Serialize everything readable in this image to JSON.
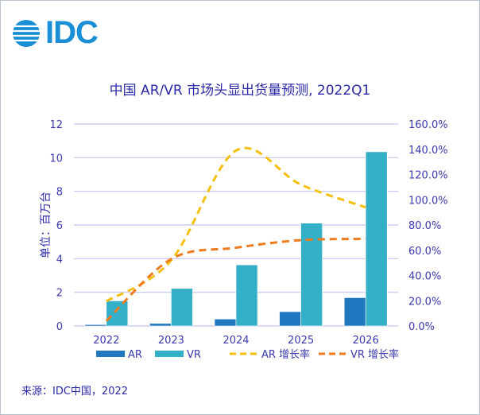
{
  "logo": {
    "text": "IDC"
  },
  "chart_data": {
    "type": "bar",
    "title": "中国 AR/VR 市场头显出货量预测, 2022Q1",
    "ylabel": "单位：百万台",
    "categories": [
      "2022",
      "2023",
      "2024",
      "2025",
      "2026"
    ],
    "ylim": [
      0,
      12
    ],
    "yticks": [
      "0",
      "2",
      "4",
      "6",
      "8",
      "10",
      "12"
    ],
    "y2lim": [
      0,
      160
    ],
    "y2ticks": [
      "0.0%",
      "20.0%",
      "40.0%",
      "60.0%",
      "80.0%",
      "100.0%",
      "120.0%",
      "140.0%",
      "160.0%"
    ],
    "grid": true,
    "legend_position": "bottom",
    "series": [
      {
        "name": "AR",
        "kind": "bar",
        "axis": "left",
        "color": "#1f77bf",
        "values": [
          0.08,
          0.15,
          0.41,
          0.85,
          1.68
        ]
      },
      {
        "name": "VR",
        "kind": "bar",
        "axis": "left",
        "color": "#33afc8",
        "values": [
          1.49,
          2.23,
          3.63,
          6.11,
          10.35
        ]
      },
      {
        "name": "AR 增长率",
        "kind": "line",
        "axis": "right",
        "color": "#f5bf0f",
        "dashed": true,
        "values": [
          19.5,
          52,
          139,
          112,
          94
        ]
      },
      {
        "name": "VR 增长率",
        "kind": "line",
        "axis": "right",
        "color": "#f07a1e",
        "dashed": true,
        "values": [
          4,
          53,
          62,
          68,
          69
        ]
      }
    ]
  },
  "source": "来源：IDC中国，2022"
}
